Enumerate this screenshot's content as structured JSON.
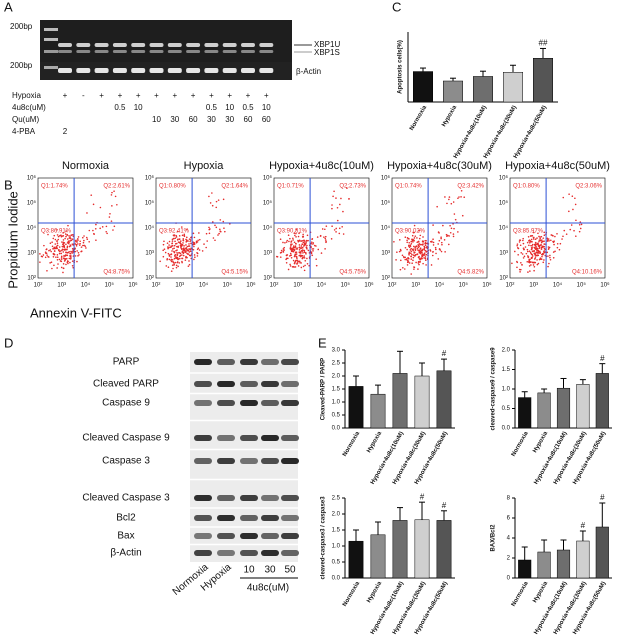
{
  "panel_labels": [
    "A",
    "B",
    "C",
    "D",
    "E"
  ],
  "gel_a": {
    "ladder_labels": [
      "200bp",
      "200bp"
    ],
    "band_labels": [
      "XBP1U",
      "XBP1S",
      "β-Actin"
    ],
    "rows": [
      {
        "label": "Hypoxia",
        "cells": [
          "+",
          "-",
          "+",
          "+",
          "+",
          "+",
          "+",
          "+",
          "+",
          "+",
          "+",
          "+"
        ]
      },
      {
        "label": "4u8c(uM)",
        "cells": [
          null,
          null,
          null,
          "0.5",
          "10",
          null,
          null,
          null,
          "0.5",
          "10",
          "0.5",
          "10"
        ]
      },
      {
        "label": "Qu(uM)",
        "cells": [
          null,
          null,
          null,
          null,
          null,
          "10",
          "30",
          "60",
          "30",
          "30",
          "60",
          "60"
        ]
      },
      {
        "label": "4-PBA",
        "cells": [
          "2",
          null,
          null,
          null,
          null,
          null,
          null,
          null,
          null,
          null,
          null,
          null
        ]
      }
    ]
  },
  "flow_b": {
    "y_label": "Propidium Iodide",
    "x_label": "Annexin V-FITC",
    "tick_labels": [
      "10²",
      "10³",
      "10⁴",
      "10⁵",
      "10⁶"
    ],
    "plots": [
      {
        "title": "Normoxia",
        "quadrants": [
          "Q1:1.74%",
          "Q2:2.61%",
          "Q3:86.91%",
          "Q4:8.75%"
        ]
      },
      {
        "title": "Hypoxia",
        "quadrants": [
          "Q1:0.80%",
          "Q2:1.64%",
          "Q3:92.41%",
          "Q4:5.15%"
        ]
      },
      {
        "title": "Hypoxia+4u8c(10uM)",
        "quadrants": [
          "Q1:0.71%",
          "Q2:2.73%",
          "Q3:90.81%",
          "Q4:5.75%"
        ]
      },
      {
        "title": "Hypoxia+4u8c(30uM)",
        "quadrants": [
          "Q1:0.74%",
          "Q2:3.42%",
          "Q3:90.02%",
          "Q4:5.82%"
        ]
      },
      {
        "title": "Hypoxia+4u8c(50uM)",
        "quadrants": [
          "Q1:0.80%",
          "Q2:3.06%",
          "Q3:85.97%",
          "Q4:10.16%"
        ]
      }
    ]
  },
  "blot_d": {
    "rows": [
      "PARP",
      "Cleaved PARP",
      "Caspase 9",
      "Cleaved Caspase 9",
      "Caspase 3",
      "Cleaved Caspase 3",
      "Bcl2",
      "Bax",
      "β-Actin"
    ],
    "lanes": [
      "Normoxia",
      "Hypoxia",
      "10",
      "30",
      "50"
    ],
    "dose_label": "4u8c(uM)"
  },
  "chart_data": [
    {
      "type": "bar",
      "y_label": "Apoptosis cells(%)",
      "categories": [
        "Normoxia",
        "Hypoxia",
        "Hypoxia+4u8c(10uM)",
        "Hypoxia+4u8c(30uM)",
        "Hypoxia+4u8c(50uM)"
      ],
      "values": [
        8.7,
        6.0,
        7.3,
        8.5,
        12.5
      ],
      "error": [
        1.0,
        0.8,
        1.5,
        2.0,
        2.8
      ],
      "annotations": [
        null,
        null,
        null,
        null,
        "##"
      ],
      "colors": [
        "#111111",
        "#8c8c8c",
        "#6e6e6e",
        "#cfcfcf",
        "#555555"
      ],
      "ylim": [
        0,
        20
      ]
    },
    {
      "type": "bar",
      "y_label": "Cleaved-PARP / PARP",
      "categories": [
        "Normoxia",
        "Hypoxia",
        "Hypoxia+4u8c(10uM)",
        "Hypoxia+4u8c(30uM)",
        "Hypoxia+4u8c(50uM)"
      ],
      "values": [
        1.6,
        1.3,
        2.1,
        2.0,
        2.2
      ],
      "error": [
        0.4,
        0.35,
        0.85,
        0.5,
        0.45
      ],
      "annotations": [
        null,
        null,
        null,
        null,
        "#"
      ],
      "colors": [
        "#111111",
        "#8c8c8c",
        "#6e6e6e",
        "#cfcfcf",
        "#555555"
      ],
      "ylim": [
        0,
        3
      ],
      "yticks": [
        {
          "value": 0,
          "label": "0.0"
        },
        0.5,
        {
          "value": 1,
          "label": "1.0"
        },
        1.5,
        {
          "value": 2,
          "label": "2.0"
        },
        2.5,
        {
          "value": 3,
          "label": "3.0"
        }
      ]
    },
    {
      "type": "bar",
      "y_label": "cleaved-caspase9 / caspase9",
      "categories": [
        "Normoxia",
        "Hypoxia",
        "Hypoxia+4u8c(10uM)",
        "Hypoxia+4u8c(30uM)",
        "Hypoxia+4u8c(50uM)"
      ],
      "values": [
        0.78,
        0.9,
        1.02,
        1.12,
        1.4
      ],
      "error": [
        0.15,
        0.1,
        0.25,
        0.12,
        0.25
      ],
      "annotations": [
        null,
        null,
        null,
        null,
        "#"
      ],
      "colors": [
        "#111111",
        "#8c8c8c",
        "#6e6e6e",
        "#cfcfcf",
        "#555555"
      ],
      "ylim": [
        0,
        2
      ],
      "yticks": [
        {
          "value": 0,
          "label": "0.0"
        },
        0.5,
        {
          "value": 1,
          "label": "1.0"
        },
        1.5,
        {
          "value": 2,
          "label": "2.0"
        }
      ]
    },
    {
      "type": "bar",
      "y_label": "cleaved-caspase3 / caspase3",
      "categories": [
        "Normoxia",
        "Hypoxia",
        "Hypoxia+4u8c(10uM)",
        "Hypoxia+4u8c(30uM)",
        "Hypoxia+4u8c(50uM)"
      ],
      "values": [
        1.15,
        1.35,
        1.8,
        1.82,
        1.8
      ],
      "error": [
        0.35,
        0.4,
        0.4,
        0.55,
        0.3
      ],
      "annotations": [
        null,
        null,
        null,
        "#",
        "#"
      ],
      "colors": [
        "#111111",
        "#8c8c8c",
        "#6e6e6e",
        "#cfcfcf",
        "#555555"
      ],
      "ylim": [
        0,
        2.5
      ],
      "yticks": [
        {
          "value": 0,
          "label": "0.0"
        },
        0.5,
        {
          "value": 1,
          "label": "1.0"
        },
        1.5,
        {
          "value": 2,
          "label": "2.0"
        },
        2.5
      ]
    },
    {
      "type": "bar",
      "y_label": "BAX/Bcl2",
      "categories": [
        "Normoxia",
        "Hypoxia",
        "Hypoxia+4u8c(10uM)",
        "Hypoxia+4u8c(30uM)",
        "Hypoxia+4u8c(50uM)"
      ],
      "values": [
        1.8,
        2.6,
        2.8,
        3.7,
        5.1
      ],
      "error": [
        1.3,
        1.2,
        1.0,
        1.0,
        2.4
      ],
      "annotations": [
        null,
        null,
        null,
        "#",
        "#"
      ],
      "colors": [
        "#111111",
        "#8c8c8c",
        "#6e6e6e",
        "#cfcfcf",
        "#555555"
      ],
      "ylim": [
        0,
        8
      ],
      "yticks": [
        0,
        2,
        4,
        6,
        8
      ]
    }
  ]
}
